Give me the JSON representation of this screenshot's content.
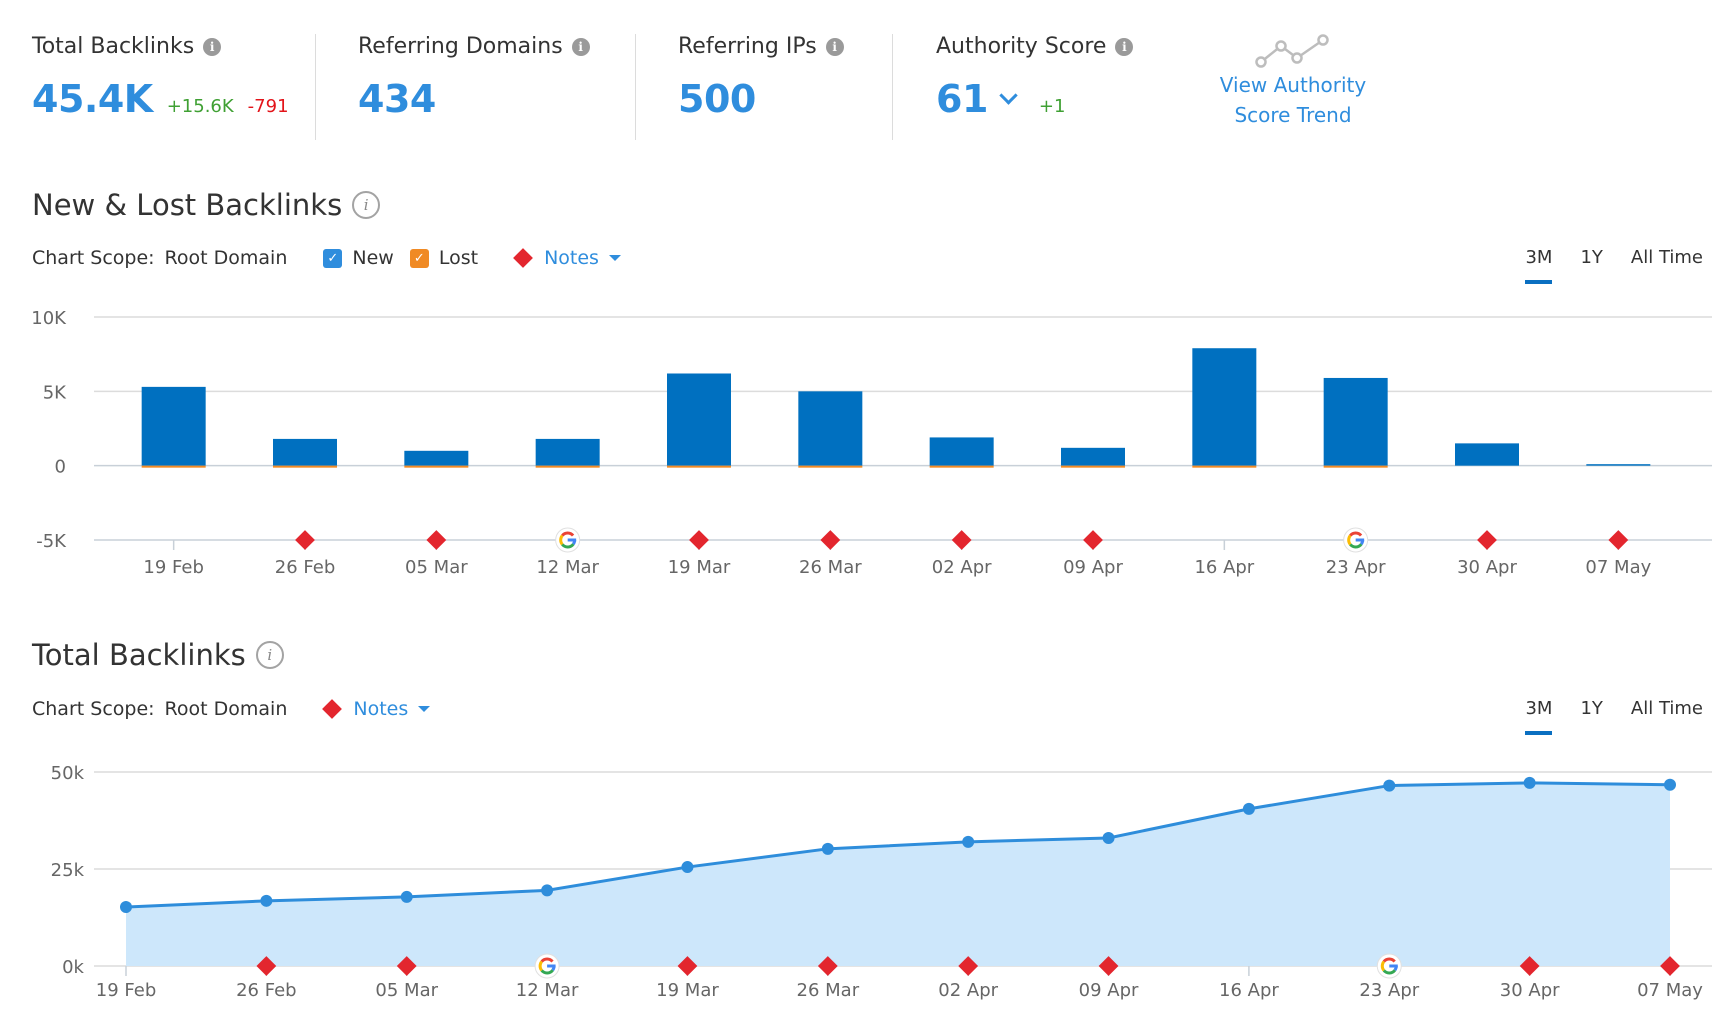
{
  "kpis": [
    {
      "title": "Total Backlinks",
      "value": "45.4K",
      "delta_up": "+15.6K",
      "delta_down": "-791"
    },
    {
      "title": "Referring Domains",
      "value": "434"
    },
    {
      "title": "Referring IPs",
      "value": "500"
    },
    {
      "title": "Authority Score",
      "value": "61",
      "delta_up": "+1"
    }
  ],
  "authority_trend_link": [
    "View Authority",
    "Score Trend"
  ],
  "chart_scope_label": "Chart Scope:",
  "chart_scope_value": "Root Domain",
  "new_lost": {
    "title": "New & Lost Backlinks",
    "legend_new": "New",
    "legend_lost": "Lost",
    "notes_label": "Notes",
    "ranges": [
      "3M",
      "1Y",
      "All Time"
    ],
    "active_range": "3M"
  },
  "total": {
    "title": "Total Backlinks",
    "notes_label": "Notes",
    "ranges": [
      "3M",
      "1Y",
      "All Time"
    ],
    "active_range": "3M"
  },
  "colors": {
    "accent": "#2f8ddd",
    "bar_new": "#0070c0",
    "bar_lost": "#f08a24",
    "note": "#e3262e",
    "area_fill": "#cde7fb",
    "line": "#2e8ddb"
  },
  "chart_data": [
    {
      "type": "bar",
      "title": "New & Lost Backlinks",
      "categories": [
        "19 Feb",
        "26 Feb",
        "05 Mar",
        "12 Mar",
        "19 Mar",
        "26 Mar",
        "02 Apr",
        "09 Apr",
        "16 Apr",
        "23 Apr",
        "30 Apr",
        "07 May"
      ],
      "series": [
        {
          "name": "New",
          "values": [
            5300,
            1800,
            1000,
            1800,
            6200,
            5000,
            1900,
            1200,
            7900,
            5900,
            1500,
            100
          ]
        },
        {
          "name": "Lost",
          "values": [
            -100,
            -100,
            -100,
            -100,
            -100,
            -100,
            -100,
            -100,
            -100,
            -100,
            0,
            0
          ]
        }
      ],
      "yticks": [
        "10K",
        "5K",
        "0",
        "-5K"
      ],
      "ylim": [
        -5000,
        10000
      ],
      "notes": [
        "none",
        "note",
        "note",
        "google",
        "note",
        "note",
        "note",
        "note",
        "none",
        "google",
        "note",
        "note"
      ],
      "grid": true
    },
    {
      "type": "area",
      "title": "Total Backlinks",
      "categories": [
        "19 Feb",
        "26 Feb",
        "05 Mar",
        "12 Mar",
        "19 Mar",
        "26 Mar",
        "02 Apr",
        "09 Apr",
        "16 Apr",
        "23 Apr",
        "30 Apr",
        "07 May"
      ],
      "series": [
        {
          "values": [
            15200,
            16800,
            17800,
            19500,
            25500,
            30200,
            32000,
            33000,
            40500,
            46500,
            47200,
            46700
          ]
        }
      ],
      "yticks": [
        "50k",
        "25k",
        "0k"
      ],
      "ylim": [
        0,
        50000
      ],
      "notes": [
        "none",
        "note",
        "note",
        "google",
        "note",
        "note",
        "note",
        "note",
        "none",
        "google",
        "note",
        "note"
      ],
      "grid": true
    }
  ]
}
